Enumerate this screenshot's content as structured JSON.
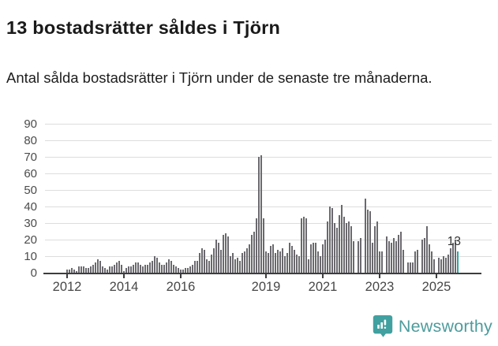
{
  "header": {
    "title": "13 bostadsrätter såldes i Tjörn",
    "subtitle": "Antal sålda bostadsrätter i Tjörn under de senaste tre månaderna."
  },
  "chart_data": {
    "type": "bar",
    "title": "13 bostadsrätter såldes i Tjörn",
    "xlabel": "",
    "ylabel": "",
    "ylim": [
      0,
      90
    ],
    "yticks": [
      0,
      10,
      20,
      30,
      40,
      50,
      60,
      70,
      80,
      90
    ],
    "xtick_labels": [
      "2012",
      "2014",
      "2016",
      "2019",
      "2021",
      "2023",
      "2025"
    ],
    "xtick_years": [
      2012,
      2014,
      2016,
      2019,
      2021,
      2023,
      2025
    ],
    "grid": "horizontal",
    "start_month": "2012-01",
    "frequency": "monthly",
    "values": [
      2,
      2,
      3,
      2,
      1,
      4,
      4,
      4,
      3,
      3,
      4,
      5,
      6,
      8,
      7,
      4,
      3,
      2,
      4,
      4,
      5,
      6,
      7,
      5,
      1,
      3,
      4,
      4,
      5,
      6,
      6,
      5,
      4,
      5,
      5,
      6,
      7,
      10,
      9,
      6,
      5,
      5,
      6,
      8,
      7,
      5,
      4,
      3,
      2,
      2,
      3,
      3,
      4,
      5,
      7,
      7,
      12,
      15,
      14,
      8,
      7,
      11,
      15,
      20,
      18,
      14,
      23,
      24,
      22,
      10,
      12,
      8,
      9,
      7,
      12,
      13,
      15,
      17,
      23,
      25,
      33,
      70,
      71,
      33,
      13,
      12,
      16,
      17,
      12,
      14,
      13,
      15,
      10,
      12,
      18,
      16,
      14,
      11,
      10,
      33,
      34,
      33,
      8,
      17,
      18,
      18,
      13,
      10,
      17,
      20,
      31,
      40,
      39,
      30,
      27,
      35,
      41,
      34,
      30,
      31,
      28,
      19,
      0,
      19,
      21,
      0,
      45,
      38,
      37,
      18,
      28,
      31,
      13,
      13,
      0,
      22,
      19,
      18,
      21,
      19,
      23,
      25,
      14,
      0,
      6,
      6,
      6,
      13,
      14,
      0,
      20,
      21,
      28,
      17,
      13,
      8,
      0,
      9,
      8,
      10,
      9,
      11,
      15,
      18,
      20,
      13
    ],
    "highlight_last": true,
    "annotation": {
      "label": "13"
    },
    "colors": {
      "bar": "#6B696E",
      "highlight": "#2AA6A2",
      "gridline": "#DDDDDD",
      "axis": "#3D3D40",
      "tick_text": "#4B4B4B"
    },
    "legend": "none"
  },
  "footer": {
    "brand": "Newsworthy",
    "brand_color": "#4E9C9D",
    "icon_color": "#41A0A0"
  }
}
